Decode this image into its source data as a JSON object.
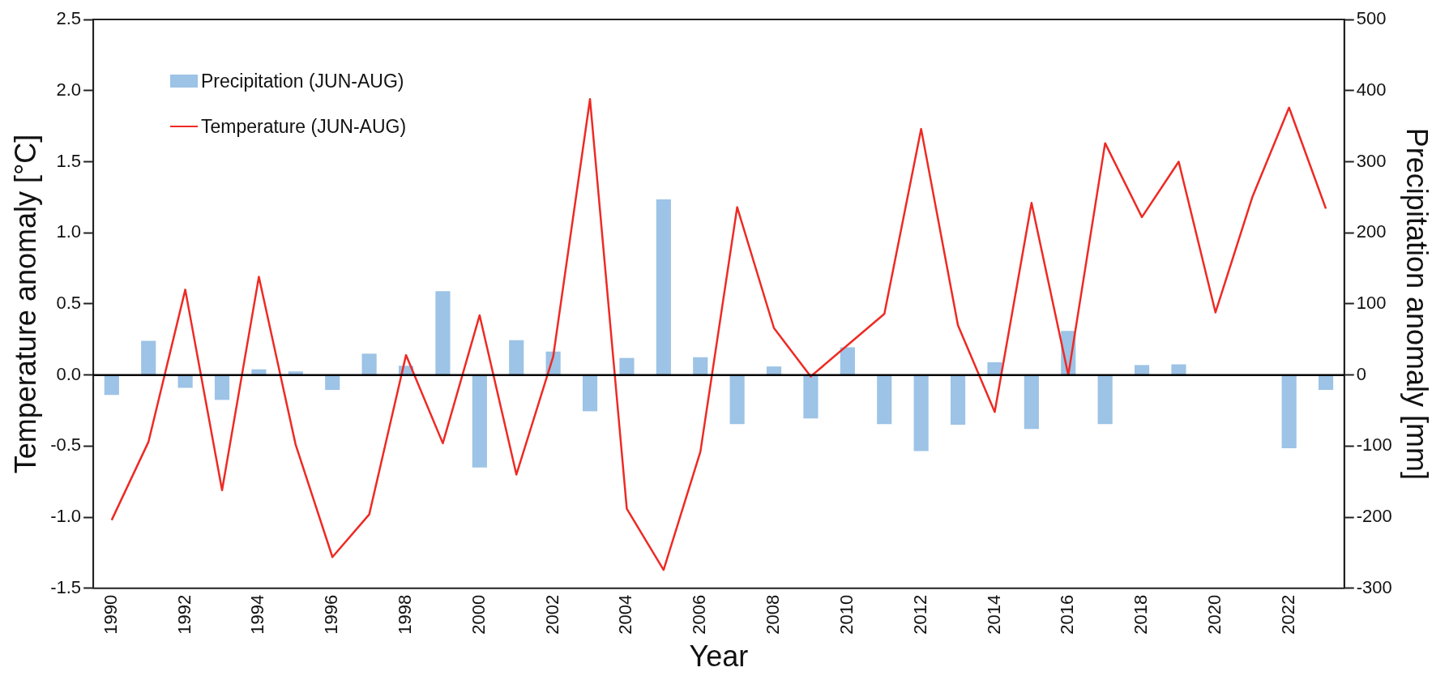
{
  "chart_data": {
    "type": "bar",
    "categories": [
      "1990",
      null,
      "1992",
      null,
      "1994",
      null,
      "1996",
      null,
      "1998",
      null,
      "2000",
      null,
      "2002",
      null,
      "2004",
      null,
      "2006",
      null,
      "2008",
      null,
      "2010",
      null,
      "2012",
      null,
      "2014",
      null,
      "2016",
      null,
      "2018",
      null,
      "2020",
      null,
      "2022",
      null
    ],
    "xlabel": "Year",
    "ylabel": "Temperature anomaly [°C]",
    "y2label": "Precipitation anomaly [mm]",
    "series": [
      {
        "name": "Precipitation (JUN-AUG)",
        "axis": "y2",
        "color": "#9dc3e6",
        "values": [
          -28,
          48,
          -18,
          -35,
          8,
          5,
          -21,
          30,
          13,
          118,
          -130,
          49,
          33,
          -51,
          24,
          247,
          25,
          -69,
          12,
          -61,
          39,
          -69,
          -107,
          -70,
          18,
          -76,
          62,
          -69,
          14,
          15,
          0,
          0,
          -103,
          -21
        ]
      },
      {
        "name": "Temperature (JUN-AUG)",
        "type": "line",
        "color": "#ee2a24",
        "values": [
          -1.02,
          -0.47,
          0.6,
          -0.81,
          0.69,
          -0.49,
          -1.28,
          -0.98,
          0.14,
          -0.48,
          0.42,
          -0.7,
          0.13,
          1.94,
          -0.94,
          -1.37,
          -0.54,
          1.18,
          0.33,
          -0.01,
          0.21,
          0.43,
          1.73,
          0.35,
          -0.26,
          1.21,
          0.0,
          1.63,
          1.11,
          1.5,
          0.44,
          1.25,
          1.88,
          1.17
        ]
      }
    ],
    "ylim": [
      -1.5,
      2.5
    ],
    "yticks": [
      {
        "value": -1.5,
        "label": "-1.5"
      },
      {
        "value": -1,
        "label": "-1.0"
      },
      {
        "value": -0.5,
        "label": "-0.5"
      },
      {
        "value": 0,
        "label": "0.0"
      },
      {
        "value": 0.5,
        "label": "0.5"
      },
      {
        "value": 1,
        "label": "1.0"
      },
      {
        "value": 1.5,
        "label": "1.5"
      },
      {
        "value": 2,
        "label": "2.0"
      },
      {
        "value": 2.5,
        "label": "2.5"
      }
    ],
    "y2lim": [
      -300,
      500
    ],
    "y2ticks": [
      -300,
      -200,
      -100,
      0,
      100,
      200,
      300,
      400,
      500
    ],
    "ref_lines": [
      {
        "axis": "y",
        "value": 0,
        "color": "#000000"
      }
    ],
    "legend": "top left",
    "grid": false,
    "marker": "none",
    "line_style": "solid"
  }
}
